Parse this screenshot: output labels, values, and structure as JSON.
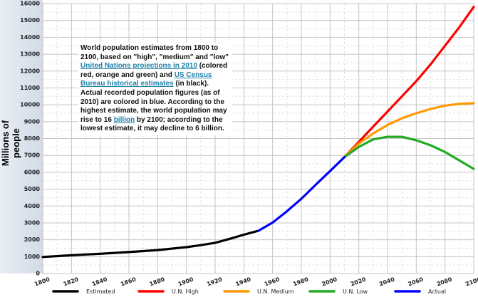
{
  "caption": {
    "part1": "World population estimates from 1800 to 2100, based on \"high\", \"medium\" and \"low\" ",
    "link1": "United Nations projections in 2010",
    "part2": " (colored red, orange and green) and ",
    "link2": "US Census Bureau historical estimates",
    "part3": " (in black). Actual recorded population figures (as of 2010) are colored in blue. According to the highest estimate, the world population may rise to 16 ",
    "link3": "billion",
    "part4": " by 2100; according to the lowest estimate, it may decline to 6 billion."
  },
  "chart_data": {
    "type": "line",
    "title": "",
    "xlabel": "",
    "ylabel": "Millions of people",
    "xlim": [
      1800,
      2100
    ],
    "ylim": [
      0,
      16000
    ],
    "x_ticks": [
      1800,
      1820,
      1840,
      1860,
      1880,
      1900,
      1920,
      1940,
      1960,
      1980,
      2000,
      2020,
      2040,
      2060,
      2080,
      2100
    ],
    "y_ticks": [
      0,
      1000,
      2000,
      3000,
      4000,
      5000,
      6000,
      7000,
      8000,
      9000,
      10000,
      11000,
      12000,
      13000,
      14000,
      15000,
      16000
    ],
    "grid": true,
    "legend_position": "bottom",
    "series": [
      {
        "name": "Estimated",
        "color": "#000000",
        "x": [
          1800,
          1820,
          1840,
          1860,
          1880,
          1900,
          1910,
          1920,
          1930,
          1940,
          1950
        ],
        "y": [
          980,
          1080,
          1170,
          1270,
          1390,
          1560,
          1680,
          1820,
          2050,
          2300,
          2530
        ]
      },
      {
        "name": "U.N. High",
        "color": "#ff0000",
        "x": [
          2010,
          2020,
          2030,
          2040,
          2050,
          2060,
          2070,
          2080,
          2090,
          2100
        ],
        "y": [
          6900,
          7800,
          8700,
          9600,
          10500,
          11400,
          12400,
          13500,
          14600,
          15800
        ]
      },
      {
        "name": "U.N. Medium",
        "color": "#ff9900",
        "x": [
          2010,
          2020,
          2030,
          2040,
          2050,
          2060,
          2070,
          2080,
          2090,
          2100
        ],
        "y": [
          6900,
          7700,
          8300,
          8800,
          9200,
          9500,
          9750,
          9950,
          10050,
          10100
        ]
      },
      {
        "name": "U.N. Low",
        "color": "#22aa22",
        "x": [
          2010,
          2020,
          2030,
          2040,
          2050,
          2060,
          2070,
          2080,
          2090,
          2100
        ],
        "y": [
          6900,
          7500,
          7950,
          8100,
          8100,
          7900,
          7600,
          7200,
          6700,
          6200
        ]
      },
      {
        "name": "Actual",
        "color": "#0000ff",
        "x": [
          1950,
          1960,
          1970,
          1980,
          1990,
          2000,
          2010
        ],
        "y": [
          2530,
          3020,
          3690,
          4430,
          5260,
          6070,
          6900
        ]
      }
    ]
  }
}
